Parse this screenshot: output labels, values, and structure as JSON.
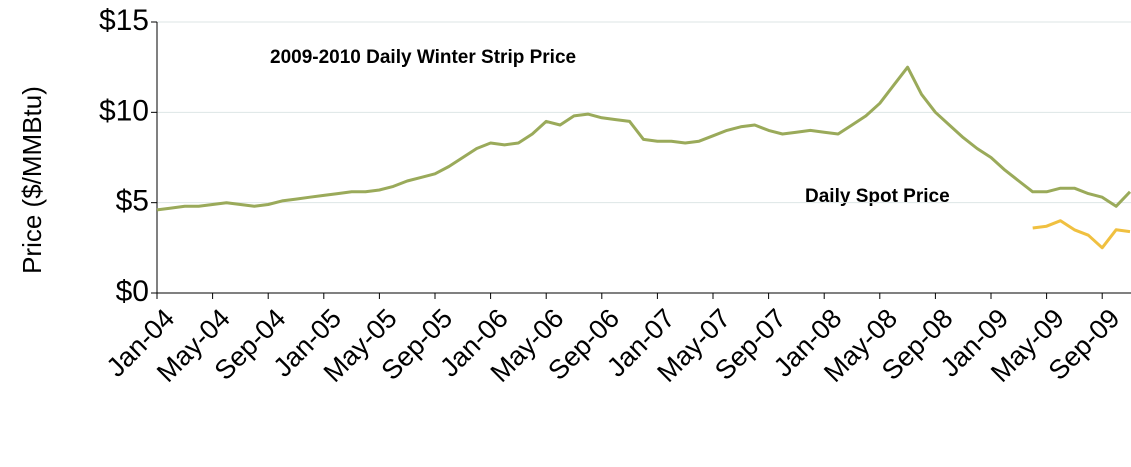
{
  "chart_data": {
    "type": "line",
    "y_label": "Price ($/MMBtu)",
    "categories": [
      "Jan-04",
      null,
      null,
      null,
      "May-04",
      null,
      null,
      null,
      "Sep-04",
      null,
      null,
      null,
      "Jan-05",
      null,
      null,
      null,
      "May-05",
      null,
      null,
      null,
      "Sep-05",
      null,
      null,
      null,
      "Jan-06",
      null,
      null,
      null,
      "May-06",
      null,
      null,
      null,
      "Sep-06",
      null,
      null,
      null,
      "Jan-07",
      null,
      null,
      null,
      "May-07",
      null,
      null,
      null,
      "Sep-07",
      null,
      null,
      null,
      "Jan-08",
      null,
      null,
      null,
      "May-08",
      null,
      null,
      null,
      "Sep-08",
      null,
      null,
      null,
      "Jan-09",
      null,
      null,
      null,
      "May-09",
      null,
      null,
      null,
      "Sep-09",
      null,
      null
    ],
    "series": [
      {
        "name": "2009-2010 Daily Winter Strip Price",
        "color": "#9aaa5a",
        "values": [
          4.6,
          4.7,
          4.8,
          4.8,
          4.9,
          5.0,
          4.9,
          4.8,
          4.9,
          5.1,
          5.2,
          5.3,
          5.4,
          5.5,
          5.6,
          5.6,
          5.7,
          5.9,
          6.2,
          6.4,
          6.6,
          7.0,
          7.5,
          8.0,
          8.3,
          8.2,
          8.3,
          8.8,
          9.5,
          9.3,
          9.8,
          9.9,
          9.7,
          9.6,
          9.5,
          8.5,
          8.4,
          8.4,
          8.3,
          8.4,
          8.7,
          9.0,
          9.2,
          9.3,
          9.0,
          8.8,
          8.9,
          9.0,
          8.9,
          8.8,
          9.3,
          9.8,
          10.5,
          11.5,
          12.5,
          11.0,
          10.0,
          9.3,
          8.6,
          8.0,
          7.5,
          6.8,
          6.2,
          5.6,
          5.6,
          5.8,
          5.8,
          5.5,
          5.3,
          4.8,
          5.6
        ]
      },
      {
        "name": "Daily Spot Price",
        "color": "#f0c040",
        "values": [
          null,
          null,
          null,
          null,
          null,
          null,
          null,
          null,
          null,
          null,
          null,
          null,
          null,
          null,
          null,
          null,
          null,
          null,
          null,
          null,
          null,
          null,
          null,
          null,
          null,
          null,
          null,
          null,
          null,
          null,
          null,
          null,
          null,
          null,
          null,
          null,
          null,
          null,
          null,
          null,
          null,
          null,
          null,
          null,
          null,
          null,
          null,
          null,
          null,
          null,
          null,
          null,
          null,
          null,
          null,
          null,
          null,
          null,
          null,
          null,
          null,
          null,
          null,
          3.6,
          3.7,
          4.0,
          3.5,
          3.2,
          2.5,
          3.5,
          3.4
        ]
      }
    ],
    "ylim": [
      0,
      15
    ],
    "yticks": [
      {
        "value": 0,
        "label": "$0"
      },
      {
        "value": 5,
        "label": "$5"
      },
      {
        "value": 10,
        "label": "$10"
      },
      {
        "value": 15,
        "label": "$15"
      }
    ],
    "grid": true
  }
}
